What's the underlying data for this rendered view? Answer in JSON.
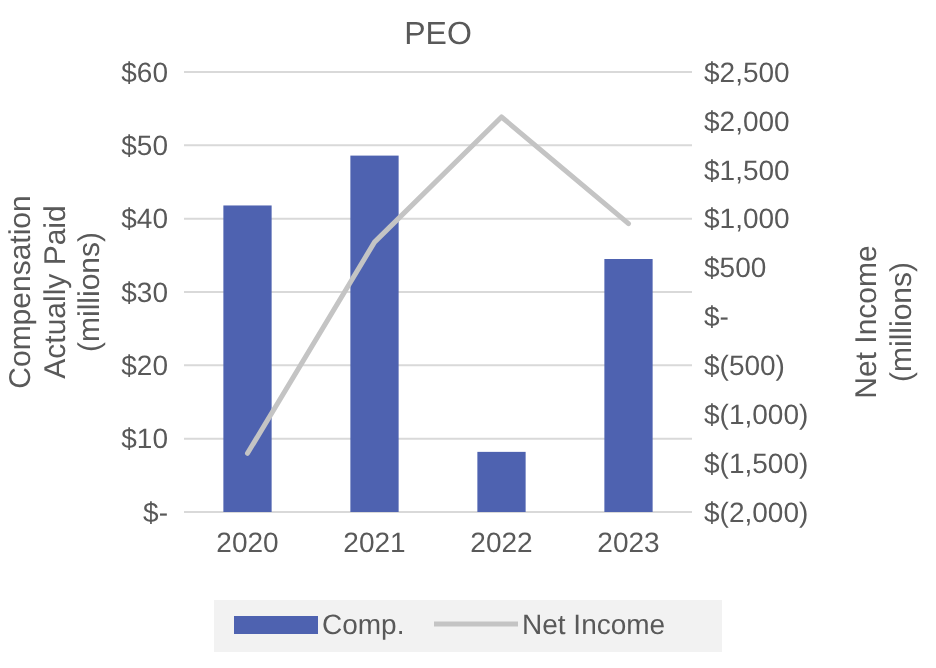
{
  "chart_data": {
    "type": "bar",
    "title": "PEO",
    "categories": [
      "2020",
      "2021",
      "2022",
      "2023"
    ],
    "ylabel": "Compensation Actually Paid (millions)",
    "y2label": "Net Income (millions)",
    "series": [
      {
        "name": "Comp.",
        "color": "#4e62b0",
        "values": [
          41.8,
          48.6,
          8.2,
          34.5
        ]
      },
      {
        "name": "Net Income",
        "type": "line",
        "axis": "y2",
        "color": "#c4c4c4",
        "values": [
          -1400,
          760,
          2040,
          950
        ]
      }
    ],
    "ylim": [
      0,
      60
    ],
    "yticks": [
      {
        "value": 0,
        "label": "$-"
      },
      {
        "value": 10,
        "label": "$10"
      },
      {
        "value": 20,
        "label": "$20"
      },
      {
        "value": 30,
        "label": "$30"
      },
      {
        "value": 40,
        "label": "$40"
      },
      {
        "value": 50,
        "label": "$50"
      },
      {
        "value": 60,
        "label": "$60"
      }
    ],
    "y2lim": [
      -2000,
      2500
    ],
    "y2ticks": [
      {
        "value": -2000,
        "label": "$(2,000)"
      },
      {
        "value": -1500,
        "label": "$(1,500)"
      },
      {
        "value": -1000,
        "label": "$(1,000)"
      },
      {
        "value": -500,
        "label": "$(500)"
      },
      {
        "value": 0,
        "label": "$-"
      },
      {
        "value": 500,
        "label": "$500"
      },
      {
        "value": 1000,
        "label": "$1,000"
      },
      {
        "value": 1500,
        "label": "$1,500"
      },
      {
        "value": 2000,
        "label": "$2,000"
      },
      {
        "value": 2500,
        "label": "$2,500"
      }
    ],
    "grid": "y",
    "legend": "bottom",
    "marker": "none"
  }
}
